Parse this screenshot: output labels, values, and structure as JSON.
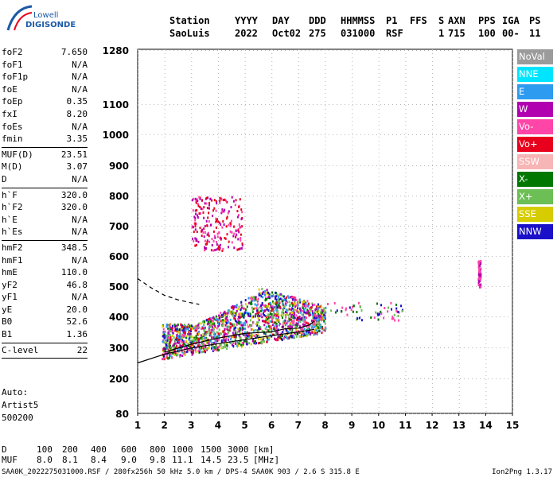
{
  "logo": {
    "line1": "Lowell",
    "line2": "DIGISONDE"
  },
  "header": {
    "labels": [
      "Station",
      "YYYY",
      "DAY",
      "DDD",
      "HHMMSS",
      "P1",
      "FFS",
      "S",
      "AXN",
      "PPS",
      "IGA",
      "PS"
    ],
    "values": [
      "SaoLuis",
      "2022",
      "Oct02",
      "275",
      "031000",
      "RSF",
      "",
      "1",
      "715",
      "100",
      "00-",
      "11"
    ]
  },
  "params": [
    {
      "name": "foF2",
      "value": "7.650"
    },
    {
      "name": "foF1",
      "value": "N/A"
    },
    {
      "name": "foF1p",
      "value": "N/A"
    },
    {
      "name": "foE",
      "value": "N/A"
    },
    {
      "name": "foEp",
      "value": "0.35"
    },
    {
      "name": "fxI",
      "value": "8.20"
    },
    {
      "name": "foEs",
      "value": "N/A"
    },
    {
      "name": "fmin",
      "value": "3.35"
    },
    {
      "sep": true
    },
    {
      "name": "MUF(D)",
      "value": "23.51"
    },
    {
      "name": "M(D)",
      "value": "3.07"
    },
    {
      "name": "D",
      "value": "N/A"
    },
    {
      "sep": true
    },
    {
      "name": "h`F",
      "value": "320.0"
    },
    {
      "name": "h`F2",
      "value": "320.0"
    },
    {
      "name": "h`E",
      "value": "N/A"
    },
    {
      "name": "h`Es",
      "value": "N/A"
    },
    {
      "sep": true
    },
    {
      "name": "hmF2",
      "value": "348.5"
    },
    {
      "name": "hmF1",
      "value": "N/A"
    },
    {
      "name": "hmE",
      "value": "110.0"
    },
    {
      "name": "yF2",
      "value": "46.8"
    },
    {
      "name": "yF1",
      "value": "N/A"
    },
    {
      "name": "yE",
      "value": "20.0"
    },
    {
      "name": "B0",
      "value": "52.6"
    },
    {
      "name": "B1",
      "value": "1.36"
    },
    {
      "sep": true
    },
    {
      "name": "C-level",
      "value": "22"
    },
    {
      "sep": true
    }
  ],
  "footer": {
    "auto": "Auto:",
    "artist": "Artist5",
    "code": "500200"
  },
  "legend": [
    {
      "label": "NoVal",
      "color": "#9b9b9b"
    },
    {
      "label": "NNE",
      "color": "#00e5ff"
    },
    {
      "label": "E",
      "color": "#2d9bf0"
    },
    {
      "label": "W",
      "color": "#b000b0"
    },
    {
      "label": "Vo-",
      "color": "#ff45a8"
    },
    {
      "label": "Vo+",
      "color": "#e8001c"
    },
    {
      "label": "SSW",
      "color": "#f7b5b5"
    },
    {
      "label": "X-",
      "color": "#007800"
    },
    {
      "label": "X+",
      "color": "#6bbf55"
    },
    {
      "label": "SSE",
      "color": "#d6cc00"
    },
    {
      "label": "NNW",
      "color": "#1a10c8"
    }
  ],
  "dmuf": {
    "d_label": "D",
    "d_values": [
      "100",
      "200",
      "400",
      "600",
      "800",
      "1000",
      "1500",
      "3000",
      "[km]"
    ],
    "muf_label": "MUF",
    "muf_values": [
      "8.0",
      "8.1",
      "8.4",
      "9.0",
      "9.8",
      "11.1",
      "14.5",
      "23.5",
      "[MHz]"
    ]
  },
  "file_info": "SAA0K_2022275031000.RSF / 280fx256h 50 kHz 5.0 km / DPS-4 SAA0K 903 / 2.6 S 315.8 E",
  "version": "Ion2Png 1.3.17",
  "chart_data": {
    "type": "scatter",
    "x_ticks": [
      1,
      2,
      3,
      4,
      5,
      6,
      7,
      8,
      9,
      10,
      11,
      12,
      13,
      14,
      15
    ],
    "y_ticks": [
      80,
      200,
      300,
      400,
      500,
      600,
      700,
      800,
      900,
      1000,
      1100,
      1280
    ],
    "xlim": [
      1,
      15
    ],
    "ylim": [
      80,
      1300
    ],
    "y_scale": "nonlinear",
    "xlabel": "",
    "ylabel": "",
    "grid": true,
    "legend_position": "right",
    "traces": [
      {
        "style": "solid",
        "x": [
          1.0,
          2.0,
          3.0,
          4.0,
          5.0,
          6.0,
          7.0,
          7.6
        ],
        "y": [
          250,
          278,
          298,
          312,
          325,
          338,
          350,
          358
        ]
      },
      {
        "style": "solid",
        "x": [
          2.0,
          3.0,
          4.0,
          5.0,
          5.5,
          6.0,
          6.5,
          7.0,
          7.4,
          7.6
        ],
        "y": [
          285,
          310,
          330,
          345,
          348,
          350,
          360,
          362,
          372,
          385
        ]
      },
      {
        "style": "dashed",
        "x": [
          1.0,
          1.5,
          2.0,
          2.5,
          3.0,
          3.3
        ],
        "y": [
          525,
          495,
          470,
          455,
          445,
          440
        ]
      }
    ],
    "clusters": [
      {
        "x_range": [
          1.9,
          8.0
        ],
        "y_range": [
          270,
          500
        ],
        "density": "high",
        "colors": [
          "#b000b0",
          "#ff45a8",
          "#1a10c8",
          "#e8001c",
          "#007800",
          "#d6cc00",
          "#2d9bf0",
          "#6bbf55"
        ]
      },
      {
        "x_range": [
          3.0,
          4.9
        ],
        "y_range": [
          620,
          800
        ],
        "density": "medium",
        "colors": [
          "#b000b0",
          "#ff45a8",
          "#e8001c"
        ]
      },
      {
        "x_range": [
          8.0,
          10.9
        ],
        "y_range": [
          390,
          450
        ],
        "density": "low",
        "colors": [
          "#ff45a8",
          "#6bbf55",
          "#007800",
          "#1a10c8"
        ]
      },
      {
        "x_range": [
          13.7,
          13.8
        ],
        "y_range": [
          500,
          590
        ],
        "density": "low",
        "colors": [
          "#b000b0",
          "#ff45a8"
        ]
      }
    ]
  }
}
